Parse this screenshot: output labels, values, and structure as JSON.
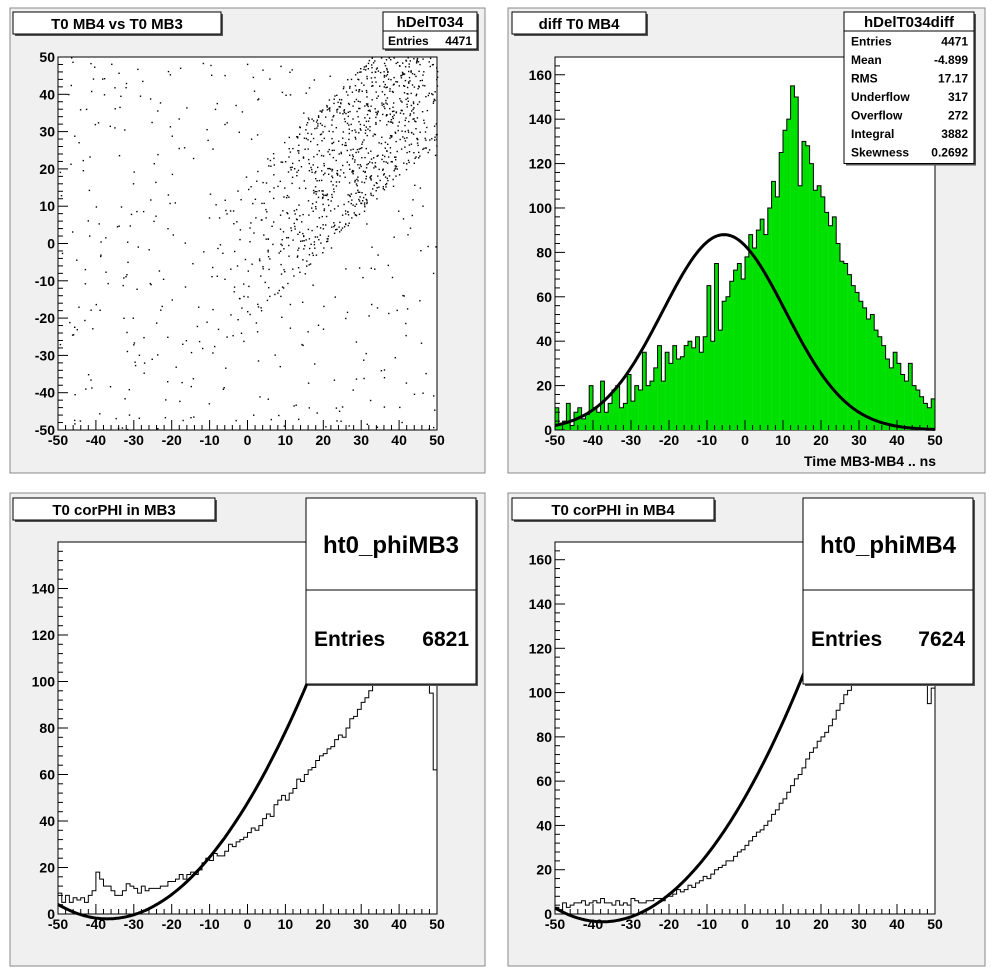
{
  "chart_data": [
    {
      "id": "pad1",
      "type": "scatter",
      "title": "T0 MB4 vs T0 MB3",
      "stats": {
        "name": "hDelT034",
        "rows": [
          {
            "label": "Entries",
            "value": "4471"
          }
        ]
      },
      "xlim": [
        -50,
        50
      ],
      "ylim": [
        -50,
        50
      ],
      "xticks": [
        -50,
        -40,
        -30,
        -20,
        -10,
        0,
        10,
        20,
        30,
        40,
        50
      ],
      "yticks": [
        -50,
        -40,
        -30,
        -20,
        -10,
        0,
        10,
        20,
        30,
        40,
        50
      ],
      "density_note": "points concentrated toward upper-right (x 20..50, y 20..50), sparser elsewhere",
      "entries": 4471
    },
    {
      "id": "pad2",
      "type": "bar",
      "title": "diff T0 MB4",
      "xlabel": "Time MB3-MB4  ..  ns",
      "stats": {
        "name": "hDelT034diff",
        "rows": [
          {
            "label": "Entries",
            "value": "4471"
          },
          {
            "label": "Mean",
            "value": "-4.899"
          },
          {
            "label": "RMS",
            "value": "17.17"
          },
          {
            "label": "Underflow",
            "value": "317"
          },
          {
            "label": "Overflow",
            "value": "272"
          },
          {
            "label": "Integral",
            "value": "3882"
          },
          {
            "label": "Skewness",
            "value": "0.2692"
          }
        ]
      },
      "xlim": [
        -50,
        50
      ],
      "ylim": [
        0,
        168
      ],
      "xticks": [
        -50,
        -40,
        -30,
        -20,
        -10,
        0,
        10,
        20,
        30,
        40,
        50
      ],
      "yticks": [
        0,
        20,
        40,
        60,
        80,
        100,
        120,
        140,
        160
      ],
      "bin_width": 1,
      "values": [
        10,
        3,
        4,
        12,
        2,
        8,
        10,
        5,
        7,
        20,
        10,
        8,
        22,
        8,
        12,
        18,
        20,
        10,
        12,
        25,
        13,
        20,
        18,
        35,
        20,
        22,
        28,
        38,
        22,
        35,
        30,
        38,
        32,
        33,
        38,
        40,
        37,
        42,
        35,
        42,
        65,
        40,
        75,
        45,
        58,
        60,
        67,
        72,
        75,
        68,
        78,
        88,
        82,
        90,
        95,
        88,
        100,
        112,
        105,
        125,
        135,
        140,
        155,
        150,
        110,
        130,
        128,
        120,
        108,
        110,
        105,
        98,
        92,
        96,
        84,
        76,
        75,
        70,
        65,
        62,
        58,
        55,
        50,
        52,
        45,
        42,
        38,
        32,
        28,
        35,
        30,
        25,
        22,
        30,
        20,
        18,
        15,
        12,
        10,
        14
      ],
      "fit": {
        "type": "gaus",
        "constant": 88,
        "mean": -5.5,
        "sigma": 16.2
      },
      "fill_color": "#00e000"
    },
    {
      "id": "pad3",
      "type": "bar",
      "title": "T0 corPHI in MB3",
      "stats": {
        "name": "ht0_phiMB3",
        "rows": [
          {
            "label": "Entries",
            "value": "6821"
          }
        ]
      },
      "xlim": [
        -50,
        50
      ],
      "ylim": [
        0,
        160
      ],
      "xticks": [
        -50,
        -40,
        -30,
        -20,
        -10,
        0,
        10,
        20,
        30,
        40,
        50
      ],
      "yticks": [
        0,
        20,
        40,
        60,
        80,
        100,
        120,
        140
      ],
      "bin_width": 1,
      "values": [
        9,
        5,
        8,
        5,
        7,
        6,
        7,
        5,
        8,
        10,
        18,
        15,
        12,
        12,
        10,
        8,
        8,
        10,
        13,
        12,
        11,
        9,
        12,
        10,
        11,
        11,
        11,
        12,
        12,
        14,
        14,
        15,
        17,
        15,
        17,
        18,
        17,
        19,
        22,
        24,
        23,
        26,
        25,
        25,
        27,
        30,
        29,
        31,
        32,
        33,
        35,
        37,
        36,
        38,
        41,
        43,
        42,
        47,
        49,
        51,
        49,
        52,
        54,
        58,
        57,
        60,
        62,
        63,
        66,
        68,
        69,
        71,
        72,
        75,
        77,
        76,
        80,
        84,
        85,
        88,
        91,
        93,
        96,
        99,
        101,
        104,
        107,
        109,
        112,
        114,
        117,
        120,
        122,
        125,
        127,
        124,
        118,
        108,
        95,
        62
      ],
      "fit": {
        "type": "pol2",
        "a": 47.75,
        "b": 2.6975,
        "c": 0.0365
      },
      "fill_color": "none"
    },
    {
      "id": "pad4",
      "type": "bar",
      "title": "T0 corPHI in MB4",
      "stats": {
        "name": "ht0_phiMB4",
        "rows": [
          {
            "label": "Entries",
            "value": "7624"
          }
        ]
      },
      "xlim": [
        -50,
        50
      ],
      "ylim": [
        0,
        168
      ],
      "xticks": [
        -50,
        -40,
        -30,
        -20,
        -10,
        0,
        10,
        20,
        30,
        40,
        50
      ],
      "yticks": [
        0,
        20,
        40,
        60,
        80,
        100,
        120,
        140,
        160
      ],
      "bin_width": 1,
      "values": [
        3,
        2,
        5,
        3,
        4,
        5,
        5,
        6,
        4,
        5,
        6,
        5,
        7,
        5,
        5,
        4,
        6,
        4,
        5,
        4,
        7,
        6,
        5,
        5,
        6,
        6,
        7,
        7,
        6,
        8,
        8,
        9,
        11,
        10,
        11,
        13,
        12,
        14,
        15,
        17,
        16,
        18,
        20,
        21,
        22,
        24,
        24,
        26,
        28,
        29,
        31,
        33,
        35,
        37,
        38,
        40,
        42,
        45,
        47,
        50,
        52,
        55,
        58,
        61,
        63,
        66,
        70,
        73,
        75,
        78,
        80,
        82,
        85,
        88,
        92,
        95,
        99,
        101,
        105,
        109,
        112,
        115,
        118,
        121,
        125,
        128,
        132,
        135,
        138,
        141,
        145,
        148,
        151,
        153,
        155,
        150,
        140,
        120,
        95,
        102
      ],
      "fit": {
        "type": "pol2",
        "a": 52.75,
        "b": 3.0,
        "c": 0.04
      },
      "fill_color": "none"
    }
  ],
  "colors": {
    "pad_bg": "#f0f0f0",
    "frame_bg": "#ffffff",
    "hist_fill": "#00e000",
    "line": "#000000",
    "shadow": "#777777"
  }
}
